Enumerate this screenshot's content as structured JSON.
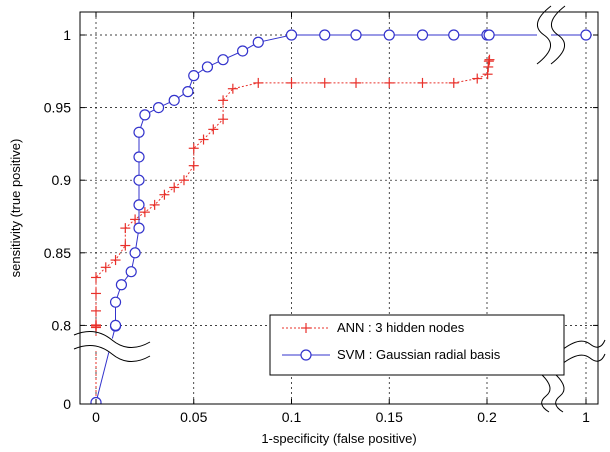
{
  "chart_data": {
    "type": "line",
    "title": "",
    "xlabel": "1-specificity (false positive)",
    "ylabel": "sensitivity (true positive)",
    "xlim": [
      0,
      1
    ],
    "ylim": [
      0,
      1
    ],
    "grid": true,
    "axis_breaks": {
      "x": "between 0.2 and 1",
      "y": "between 0 and 0.8"
    },
    "x_ticks": [
      {
        "value": 0,
        "label": "0"
      },
      {
        "value": 0.05,
        "label": "0.05"
      },
      {
        "value": 0.1,
        "label": "0.1"
      },
      {
        "value": 0.15,
        "label": "0.15"
      },
      {
        "value": 0.2,
        "label": "0.2"
      },
      {
        "value": 1,
        "label": "1"
      }
    ],
    "y_ticks": [
      {
        "value": 0,
        "label": "0"
      },
      {
        "value": 0.8,
        "label": "0.8"
      },
      {
        "value": 0.85,
        "label": "0.85"
      },
      {
        "value": 0.9,
        "label": "0.9"
      },
      {
        "value": 0.95,
        "label": "0.95"
      },
      {
        "value": 1,
        "label": "1"
      }
    ],
    "legend_position": "bottom-right",
    "series": [
      {
        "name": "ANN : 3 hidden nodes",
        "color": "#e8302a",
        "line_style": "dotted",
        "marker": "plus",
        "points": [
          [
            0,
            0
          ],
          [
            0,
            0.765
          ],
          [
            0,
            0.78
          ],
          [
            0,
            0.79
          ],
          [
            0,
            0.8
          ],
          [
            0,
            0.81
          ],
          [
            0,
            0.822
          ],
          [
            0,
            0.833
          ],
          [
            0.005,
            0.84
          ],
          [
            0.01,
            0.845
          ],
          [
            0.015,
            0.855
          ],
          [
            0.015,
            0.867
          ],
          [
            0.02,
            0.873
          ],
          [
            0.025,
            0.878
          ],
          [
            0.03,
            0.883
          ],
          [
            0.035,
            0.89
          ],
          [
            0.04,
            0.895
          ],
          [
            0.045,
            0.9
          ],
          [
            0.05,
            0.91
          ],
          [
            0.05,
            0.922
          ],
          [
            0.055,
            0.928
          ],
          [
            0.06,
            0.935
          ],
          [
            0.065,
            0.942
          ],
          [
            0.065,
            0.955
          ],
          [
            0.07,
            0.963
          ],
          [
            0.083,
            0.967
          ],
          [
            0.1,
            0.967
          ],
          [
            0.117,
            0.967
          ],
          [
            0.133,
            0.967
          ],
          [
            0.15,
            0.967
          ],
          [
            0.167,
            0.967
          ],
          [
            0.183,
            0.967
          ],
          [
            0.195,
            0.97
          ],
          [
            0.205,
            0.973
          ],
          [
            0.21,
            0.978
          ],
          [
            0.215,
            0.982
          ],
          [
            0.22,
            0.983
          ]
        ]
      },
      {
        "name": "SVM : Gaussian radial basis",
        "color": "#3333cc",
        "line_style": "solid",
        "marker": "circle",
        "points": [
          [
            0,
            0
          ],
          [
            0,
            0.015
          ],
          [
            0.01,
            0.78
          ],
          [
            0.01,
            0.8
          ],
          [
            0.01,
            0.816
          ],
          [
            0.013,
            0.828
          ],
          [
            0.018,
            0.837
          ],
          [
            0.02,
            0.85
          ],
          [
            0.022,
            0.867
          ],
          [
            0.022,
            0.883
          ],
          [
            0.022,
            0.9
          ],
          [
            0.022,
            0.916
          ],
          [
            0.022,
            0.933
          ],
          [
            0.025,
            0.945
          ],
          [
            0.032,
            0.95
          ],
          [
            0.04,
            0.955
          ],
          [
            0.047,
            0.961
          ],
          [
            0.05,
            0.972
          ],
          [
            0.057,
            0.978
          ],
          [
            0.065,
            0.983
          ],
          [
            0.075,
            0.989
          ],
          [
            0.083,
            0.995
          ],
          [
            0.1,
            1
          ],
          [
            0.117,
            1
          ],
          [
            0.133,
            1
          ],
          [
            0.15,
            1
          ],
          [
            0.167,
            1
          ],
          [
            0.183,
            1
          ],
          [
            0.2,
            1
          ],
          [
            0.217,
            1
          ],
          [
            1,
            1
          ]
        ]
      }
    ]
  }
}
